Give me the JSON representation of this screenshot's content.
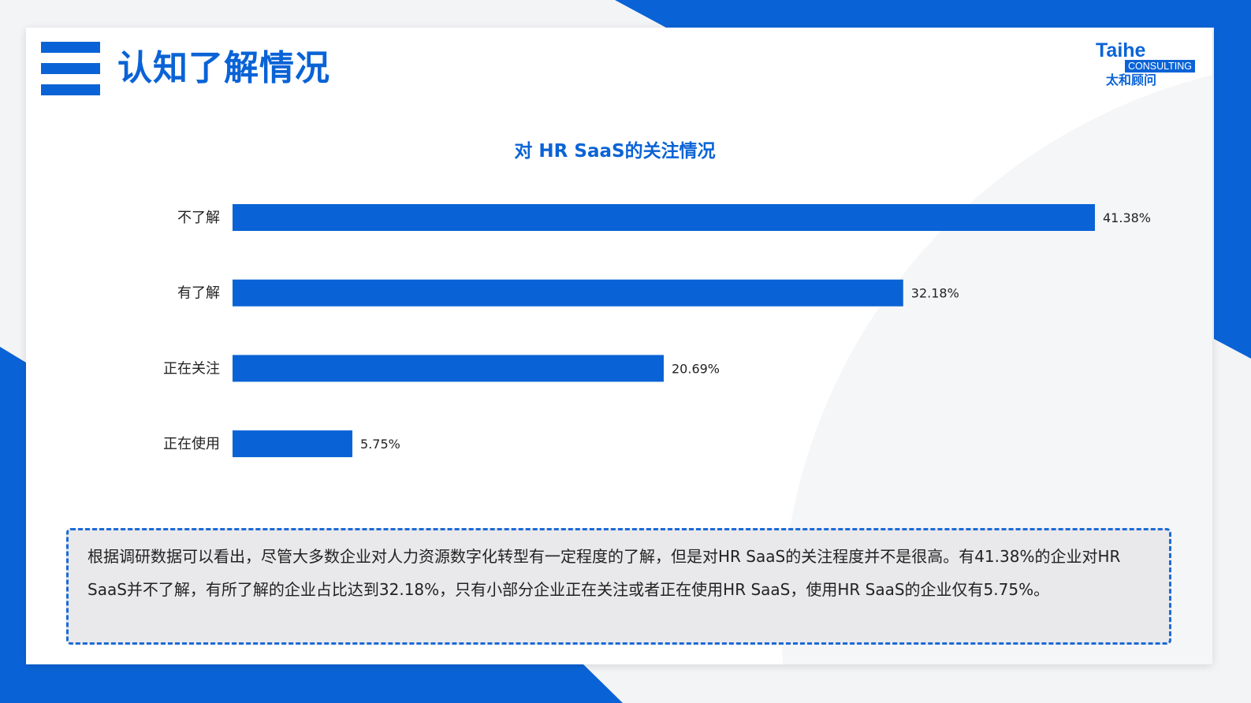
{
  "header": {
    "title": "认知了解情况"
  },
  "logo": {
    "name": "Taihe",
    "tag": "CONSULTING",
    "cn": "太和顾问"
  },
  "colors": {
    "accent": "#0a63d6",
    "bar": "#0a63d6"
  },
  "icons": [
    "menu-icon"
  ],
  "chart_data": {
    "type": "bar",
    "orientation": "horizontal",
    "title": "对 HR SaaS的关注情况",
    "xlabel": "",
    "ylabel": "",
    "grid": false,
    "categories": [
      "不了解",
      "有了解",
      "正在关注",
      "正在使用"
    ],
    "values": [
      41.38,
      32.18,
      20.69,
      5.75
    ],
    "value_labels": [
      "41.38%",
      "32.18%",
      "20.69%",
      "5.75%"
    ],
    "xlim": [
      0,
      41.38
    ]
  },
  "note": {
    "text": "根据调研数据可以看出，尽管大多数企业对人力资源数字化转型有一定程度的了解，但是对HR SaaS的关注程度并不是很高。有41.38%的企业对HR SaaS并不了解，有所了解的企业占比达到32.18%，只有小部分企业正在关注或者正在使用HR SaaS，使用HR SaaS的企业仅有5.75%。"
  }
}
